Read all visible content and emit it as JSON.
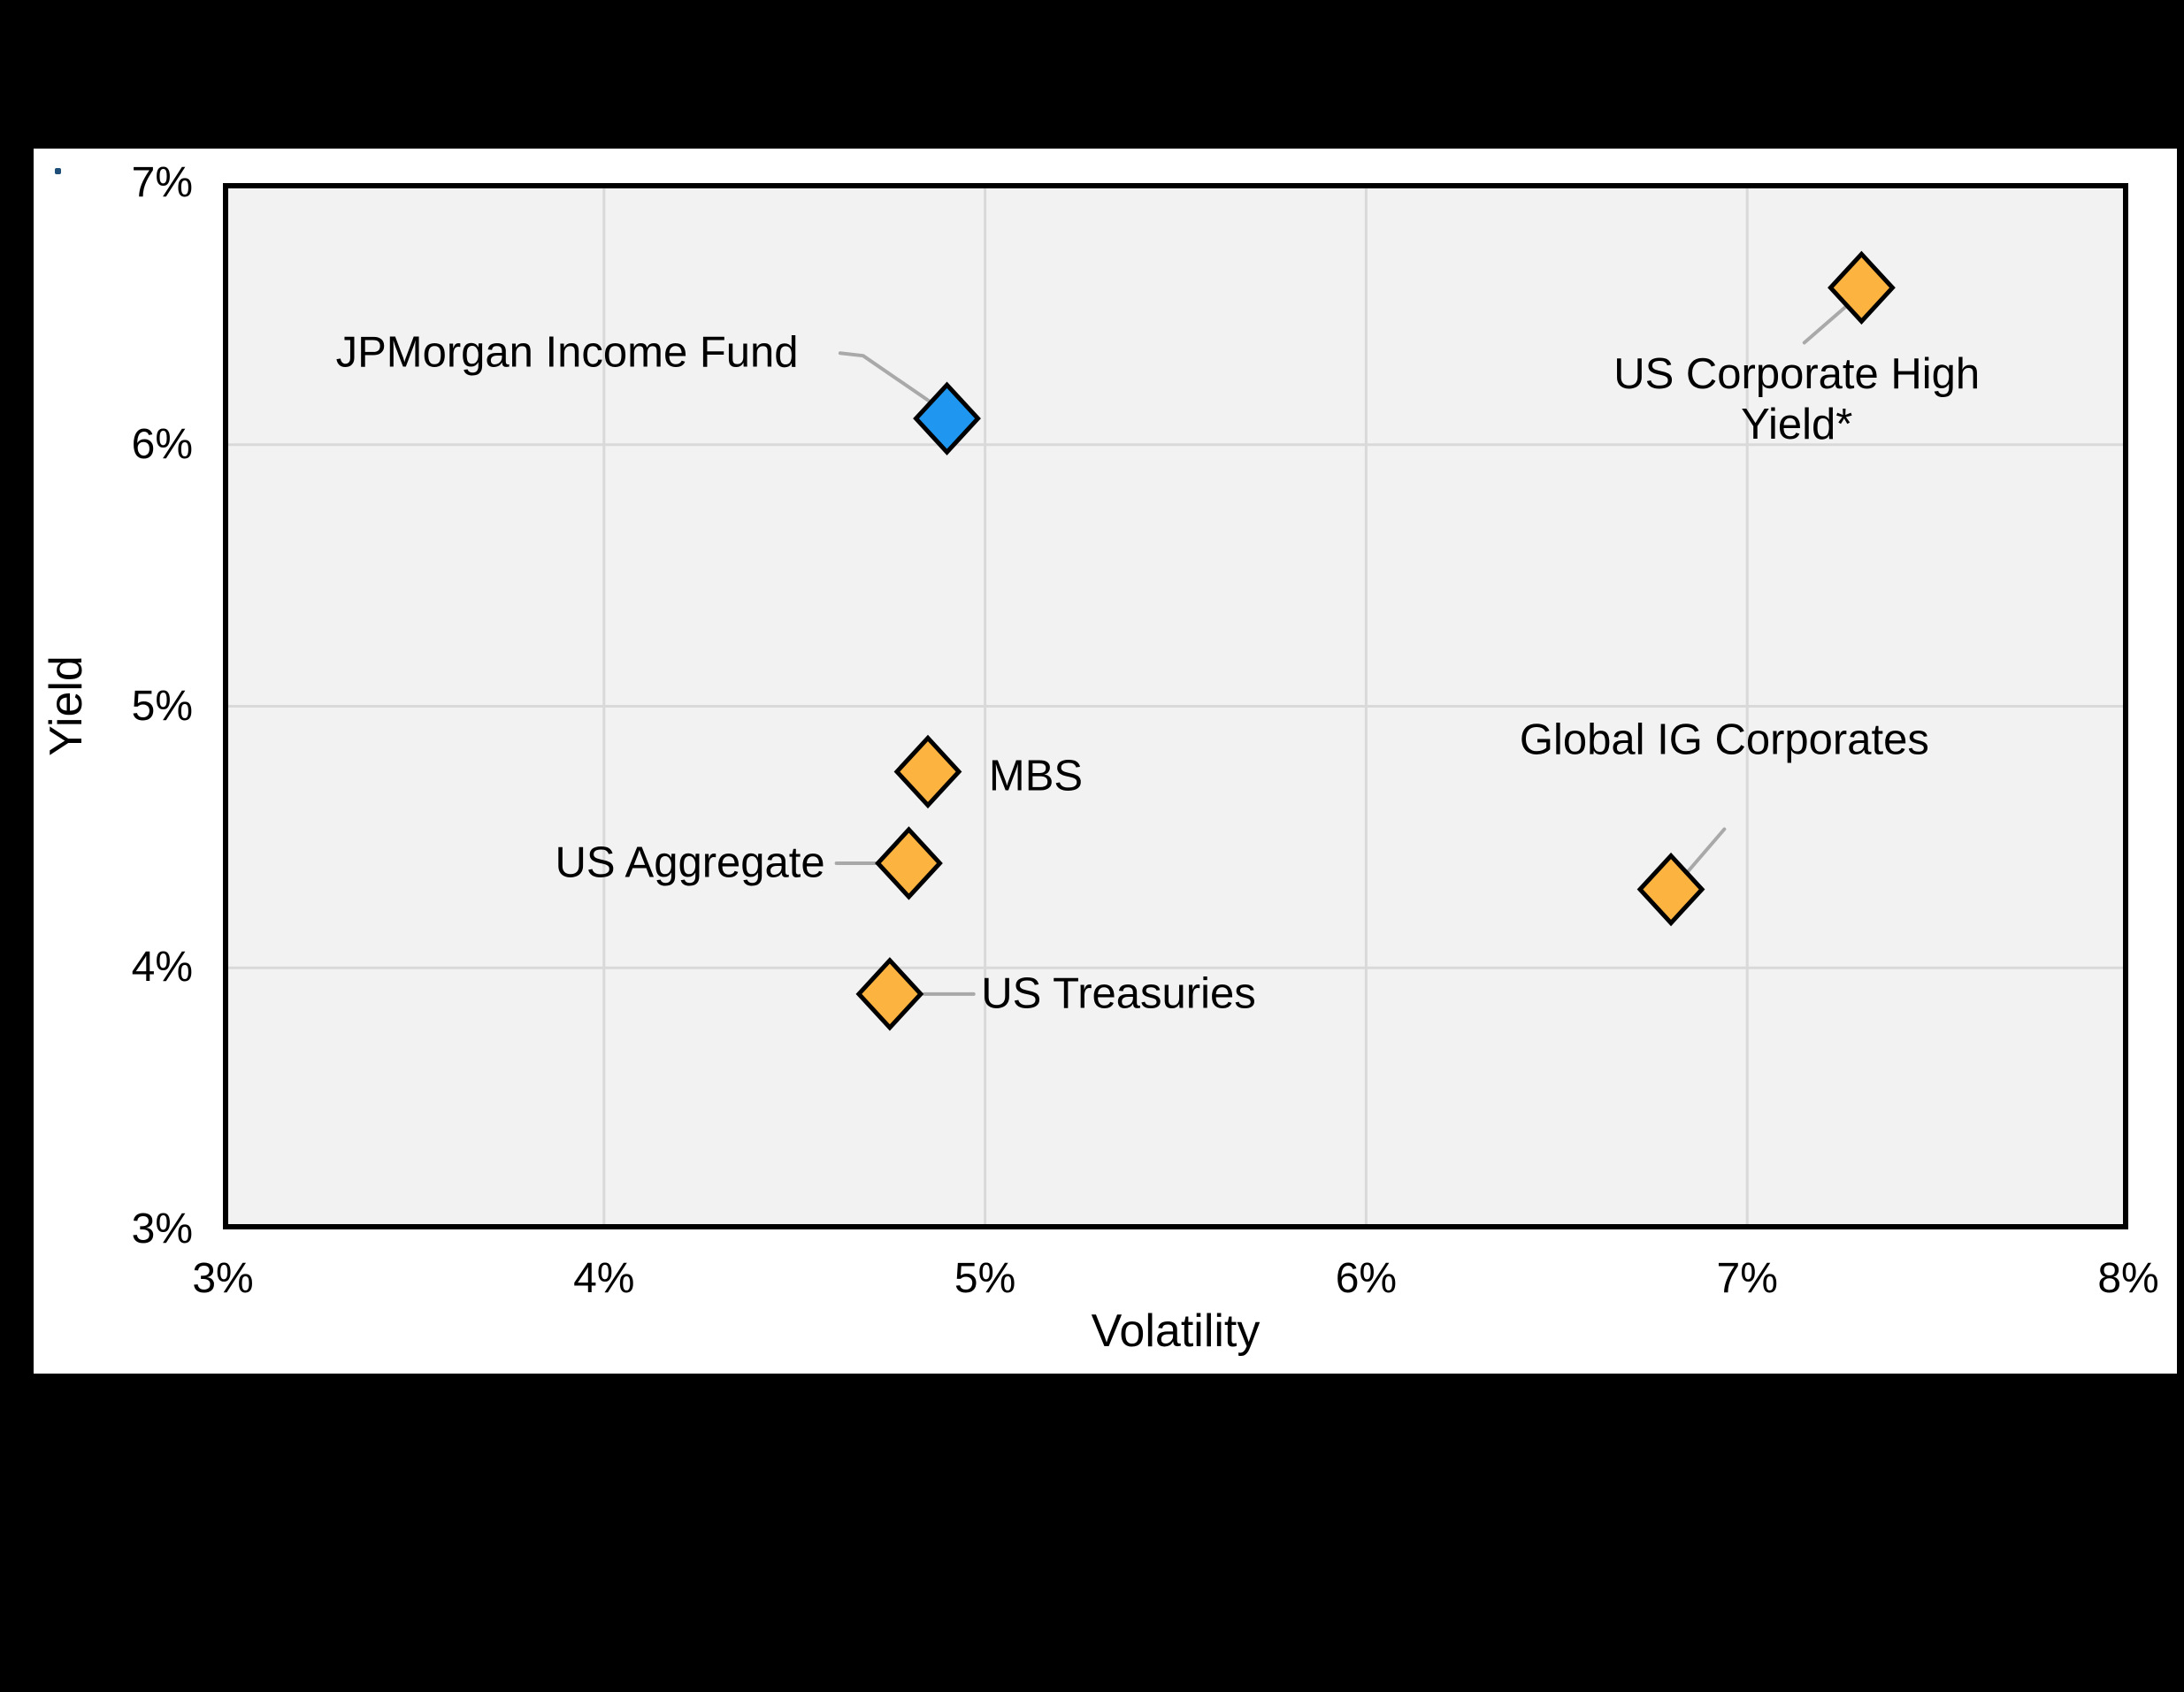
{
  "page": {
    "background_color": "#000000",
    "card_color": "#FFFFFF",
    "bullet_dot_color": "#1F4E79"
  },
  "chart_data": {
    "type": "scatter",
    "title": "",
    "xlabel": "Volatility",
    "ylabel": "Yield",
    "xlim": [
      3,
      8
    ],
    "ylim": [
      3,
      7
    ],
    "grid": true,
    "legend": "none",
    "plot_bg": "#F2F2F2",
    "grid_color": "#D9D9D9",
    "border_color": "#000000",
    "leader_color": "#A9A9A9",
    "marker": {
      "shape": "diamond",
      "half_width": 35,
      "half_height": 38,
      "stroke": "#000000",
      "stroke_width": 5
    },
    "x_ticks": [
      {
        "value": 3,
        "label": "3%"
      },
      {
        "value": 4,
        "label": "4%"
      },
      {
        "value": 5,
        "label": "5%"
      },
      {
        "value": 6,
        "label": "6%"
      },
      {
        "value": 7,
        "label": "7%"
      },
      {
        "value": 8,
        "label": "8%"
      }
    ],
    "y_ticks": [
      {
        "value": 3,
        "label": "3%"
      },
      {
        "value": 4,
        "label": "4%"
      },
      {
        "value": 5,
        "label": "5%"
      },
      {
        "value": 6,
        "label": "6%"
      },
      {
        "value": 7,
        "label": "7%"
      }
    ],
    "points": [
      {
        "name": "JPMorgan Income Fund",
        "x": 4.9,
        "y": 6.1,
        "color": "#1F97F0",
        "label": {
          "lines": [
            "JPMorgan Income Fund"
          ],
          "x": 4.51,
          "y": 6.35,
          "align": "right"
        },
        "leader": [
          [
            4.62,
            6.35
          ],
          [
            4.68,
            6.34
          ],
          [
            4.9,
            6.12
          ]
        ]
      },
      {
        "name": "US Corporate High Yield*",
        "x": 7.3,
        "y": 6.6,
        "color": "#FCB340",
        "label": {
          "lines": [
            "US Corporate High",
            "Yield*"
          ],
          "x": 7.13,
          "y": 6.17,
          "align": "center"
        },
        "leader": [
          [
            7.3,
            6.58
          ],
          [
            7.15,
            6.39
          ]
        ]
      },
      {
        "name": "MBS",
        "x": 4.85,
        "y": 4.75,
        "color": "#FCB340",
        "label": {
          "lines": [
            "MBS"
          ],
          "x": 5.01,
          "y": 4.73,
          "align": "left"
        },
        "leader": []
      },
      {
        "name": "US Aggregate",
        "x": 4.8,
        "y": 4.4,
        "color": "#FCB340",
        "label": {
          "lines": [
            "US Aggregate"
          ],
          "x": 4.58,
          "y": 4.4,
          "align": "right"
        },
        "leader": [
          [
            4.61,
            4.4
          ],
          [
            4.79,
            4.4
          ]
        ]
      },
      {
        "name": "US Treasuries",
        "x": 4.75,
        "y": 3.9,
        "color": "#FCB340",
        "label": {
          "lines": [
            "US Treasuries"
          ],
          "x": 4.99,
          "y": 3.9,
          "align": "left"
        },
        "leader": [
          [
            4.84,
            3.9
          ],
          [
            4.97,
            3.9
          ]
        ]
      },
      {
        "name": "Global IG Corporates",
        "x": 6.8,
        "y": 4.3,
        "color": "#FCB340",
        "label": {
          "lines": [
            "Global IG Corporates"
          ],
          "x": 6.94,
          "y": 4.87,
          "align": "center"
        },
        "leader": [
          [
            6.94,
            4.53
          ],
          [
            6.81,
            4.31
          ]
        ]
      }
    ]
  }
}
